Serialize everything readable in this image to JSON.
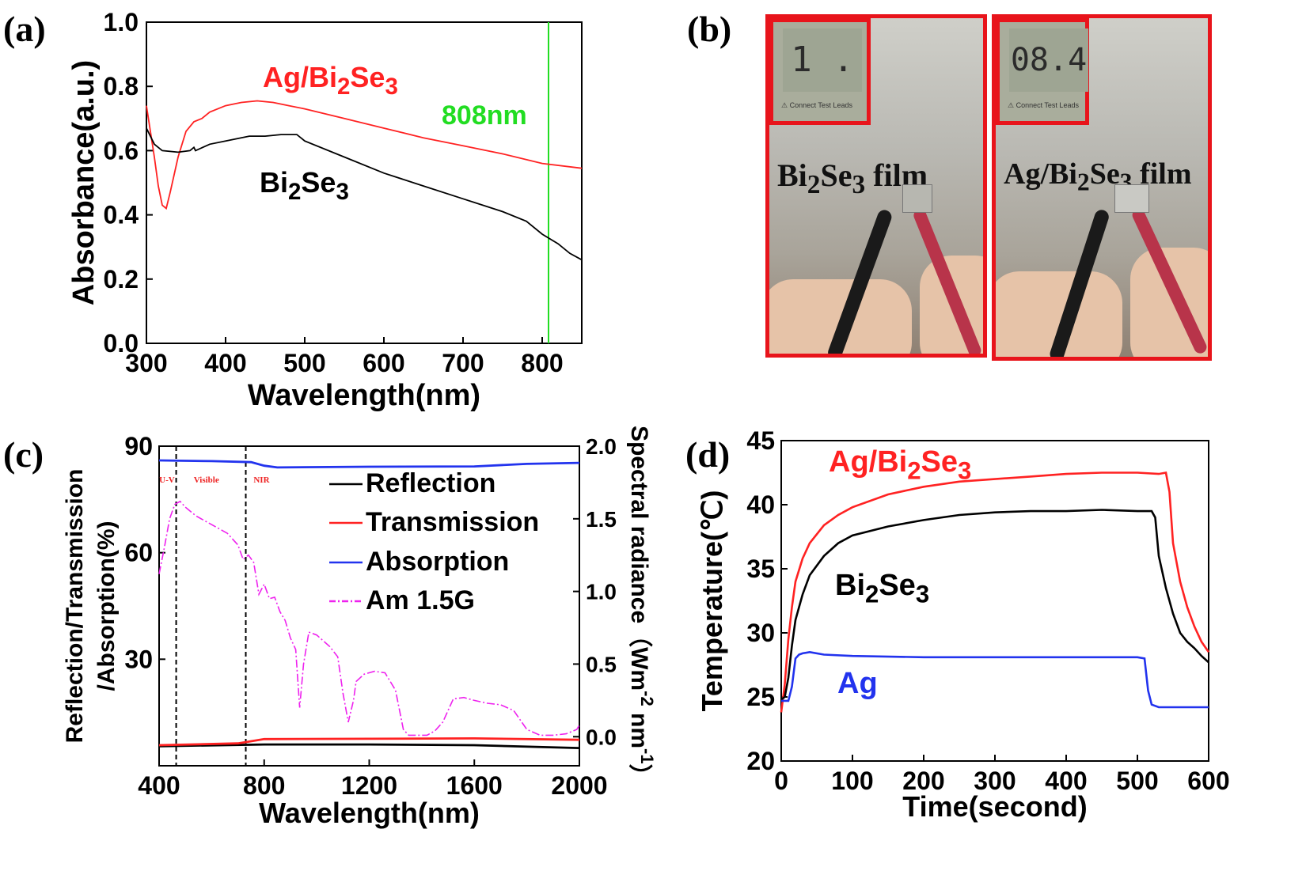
{
  "panel_labels": {
    "a": "(a)",
    "b": "(b)",
    "c": "(c)",
    "d": "(d)"
  },
  "photos": {
    "left": {
      "display": "1 .",
      "caption_main": "Bi",
      "caption_sub1": "2",
      "caption_mid": "Se",
      "caption_sub2": "3",
      "caption_end": " film",
      "leads_text": "⚠ Connect Test Leads"
    },
    "right": {
      "display": "08.4",
      "caption_main": "Ag/Bi",
      "caption_sub1": "2",
      "caption_mid": "Se",
      "caption_sub2": "3",
      "caption_end": " film",
      "leads_text": "⚠ Connect Test Leads"
    }
  },
  "chart_data": [
    {
      "id": "a",
      "type": "line",
      "xlabel": "Wavelength(nm)",
      "ylabel": "Absorbance(a.u.)",
      "xlim": [
        300,
        850
      ],
      "ylim": [
        0.0,
        1.0
      ],
      "xticks": [
        300,
        400,
        500,
        600,
        700,
        800
      ],
      "yticks": [
        0.0,
        0.2,
        0.4,
        0.6,
        0.8,
        1.0
      ],
      "ytick_labels": [
        "0.0",
        "0.2",
        "0.4",
        "0.6",
        "0.8",
        "1.0"
      ],
      "vline": {
        "x": 808,
        "label": "808nm",
        "color": "#22dd22"
      },
      "series": [
        {
          "name": "Ag/Bi2Se3",
          "color": "#ff2222",
          "label": {
            "main": "Ag/Bi",
            "sub1": "2",
            "mid": "Se",
            "sub2": "3"
          },
          "x": [
            300,
            305,
            310,
            315,
            320,
            325,
            330,
            340,
            350,
            360,
            370,
            380,
            400,
            420,
            440,
            460,
            480,
            500,
            550,
            600,
            650,
            700,
            750,
            800,
            850
          ],
          "y": [
            0.74,
            0.66,
            0.58,
            0.49,
            0.43,
            0.42,
            0.47,
            0.58,
            0.66,
            0.69,
            0.7,
            0.72,
            0.74,
            0.75,
            0.755,
            0.75,
            0.74,
            0.73,
            0.7,
            0.67,
            0.64,
            0.615,
            0.59,
            0.56,
            0.545
          ]
        },
        {
          "name": "Bi2Se3",
          "color": "#000000",
          "label": {
            "main": "Bi",
            "sub1": "2",
            "mid": "Se",
            "sub2": "3"
          },
          "x": [
            300,
            310,
            320,
            340,
            355,
            360,
            362,
            380,
            400,
            430,
            450,
            470,
            490,
            500,
            550,
            600,
            650,
            700,
            750,
            780,
            800,
            820,
            835,
            850
          ],
          "y": [
            0.67,
            0.62,
            0.6,
            0.595,
            0.6,
            0.61,
            0.6,
            0.62,
            0.63,
            0.645,
            0.645,
            0.65,
            0.65,
            0.63,
            0.58,
            0.53,
            0.49,
            0.45,
            0.41,
            0.38,
            0.34,
            0.31,
            0.28,
            0.26
          ]
        }
      ]
    },
    {
      "id": "c",
      "type": "line",
      "xlabel": "Wavelength(nm)",
      "ylabel_line1": "Reflection/Transmission",
      "ylabel_line2": "/Absorption(%)",
      "y2label": "Spectral radiance（Wm",
      "y2label_exp1": "-2",
      "y2label_mid": " nm",
      "y2label_exp2": "-1",
      "y2label_end": "）",
      "xlim": [
        400,
        2000
      ],
      "ylim": [
        0,
        90
      ],
      "y2lim": [
        -0.2,
        2.0
      ],
      "xticks": [
        400,
        800,
        1200,
        1600,
        2000
      ],
      "yticks": [
        30,
        60,
        90
      ],
      "y2ticks": [
        0.0,
        0.5,
        1.0,
        1.5,
        2.0
      ],
      "y2tick_labels": [
        "0.0",
        "0.5",
        "1.0",
        "1.5",
        "2.0"
      ],
      "region_labels": [
        {
          "text": "U-V",
          "x": 430
        },
        {
          "text": "Visible",
          "x": 580
        },
        {
          "text": "NIR",
          "x": 790
        }
      ],
      "region_lines": [
        465,
        730
      ],
      "legend": [
        "Reflection",
        "Transmission",
        "Absorption",
        "Am 1.5G"
      ],
      "series": [
        {
          "name": "Reflection",
          "color": "#000000",
          "x": [
            400,
            800,
            1200,
            1600,
            2000
          ],
          "y": [
            5.5,
            6.0,
            6.0,
            5.8,
            5.0
          ]
        },
        {
          "name": "Transmission",
          "color": "#ff2222",
          "x": [
            400,
            700,
            800,
            1200,
            1600,
            2000
          ],
          "y": [
            5.8,
            6.3,
            7.5,
            7.6,
            7.7,
            7.3
          ]
        },
        {
          "name": "Absorption",
          "color": "#2233ee",
          "x": [
            400,
            600,
            750,
            800,
            850,
            1200,
            1600,
            1800,
            2000
          ],
          "y": [
            86.0,
            85.8,
            85.5,
            84.5,
            84.0,
            84.2,
            84.3,
            85.0,
            85.3
          ]
        },
        {
          "name": "Am 1.5G",
          "color": "#ee22ee",
          "axis": "right",
          "x": [
            400,
            420,
            440,
            460,
            480,
            500,
            540,
            580,
            620,
            660,
            700,
            720,
            740,
            760,
            780,
            800,
            820,
            840,
            860,
            880,
            900,
            920,
            935,
            950,
            970,
            1000,
            1050,
            1080,
            1100,
            1120,
            1140,
            1150,
            1180,
            1220,
            1260,
            1300,
            1330,
            1350,
            1380,
            1420,
            1450,
            1480,
            1520,
            1560,
            1600,
            1650,
            1700,
            1750,
            1800,
            1850,
            1900,
            1950,
            1990,
            2000
          ],
          "y": [
            1.12,
            1.3,
            1.5,
            1.6,
            1.62,
            1.58,
            1.52,
            1.48,
            1.44,
            1.4,
            1.32,
            1.22,
            1.25,
            1.2,
            0.98,
            1.05,
            0.95,
            0.96,
            0.86,
            0.8,
            0.68,
            0.6,
            0.2,
            0.5,
            0.72,
            0.7,
            0.62,
            0.55,
            0.3,
            0.1,
            0.25,
            0.38,
            0.43,
            0.45,
            0.44,
            0.32,
            0.05,
            0.01,
            0.01,
            0.01,
            0.04,
            0.1,
            0.26,
            0.27,
            0.25,
            0.23,
            0.22,
            0.18,
            0.05,
            0.01,
            0.01,
            0.02,
            0.05,
            0.08
          ]
        }
      ]
    },
    {
      "id": "d",
      "type": "line",
      "xlabel": "Time(second)",
      "ylabel": "Temperature(℃)",
      "xlim": [
        0,
        600
      ],
      "ylim": [
        20,
        45
      ],
      "xticks": [
        0,
        100,
        200,
        300,
        400,
        500,
        600
      ],
      "yticks": [
        20,
        25,
        30,
        35,
        40,
        45
      ],
      "series": [
        {
          "name": "Ag/Bi2Se3",
          "color": "#ff2222",
          "label": {
            "main": "Ag/Bi",
            "sub1": "2",
            "mid": "Se",
            "sub2": "3"
          },
          "x": [
            0,
            5,
            10,
            15,
            20,
            30,
            40,
            60,
            80,
            100,
            150,
            200,
            250,
            300,
            350,
            400,
            450,
            500,
            530,
            540,
            545,
            550,
            560,
            570,
            580,
            590,
            600
          ],
          "y": [
            23.8,
            26.0,
            29.5,
            32.0,
            34.0,
            35.8,
            37.0,
            38.4,
            39.2,
            39.8,
            40.8,
            41.4,
            41.8,
            42.0,
            42.2,
            42.4,
            42.5,
            42.5,
            42.4,
            42.5,
            41.0,
            37.0,
            34.0,
            32.0,
            30.5,
            29.3,
            28.5
          ]
        },
        {
          "name": "Bi2Se3",
          "color": "#000000",
          "label": {
            "main": "Bi",
            "sub1": "2",
            "mid": "Se",
            "sub2": "3"
          },
          "x": [
            0,
            5,
            10,
            15,
            20,
            30,
            40,
            60,
            80,
            100,
            150,
            200,
            250,
            300,
            350,
            400,
            450,
            500,
            520,
            525,
            530,
            540,
            550,
            560,
            570,
            580,
            590,
            600
          ],
          "y": [
            24.8,
            25.0,
            26.5,
            29.0,
            31.0,
            33.0,
            34.5,
            36.0,
            37.0,
            37.6,
            38.3,
            38.8,
            39.2,
            39.4,
            39.5,
            39.5,
            39.6,
            39.5,
            39.5,
            39.0,
            36.0,
            33.5,
            31.5,
            30.0,
            29.3,
            28.8,
            28.2,
            27.7
          ]
        },
        {
          "name": "Ag",
          "color": "#2233ee",
          "label": {
            "main": "Ag"
          },
          "x": [
            0,
            10,
            15,
            20,
            25,
            30,
            40,
            60,
            100,
            200,
            300,
            400,
            450,
            500,
            510,
            515,
            520,
            530,
            550,
            570,
            600
          ],
          "y": [
            24.7,
            24.7,
            25.8,
            28.0,
            28.3,
            28.4,
            28.5,
            28.3,
            28.2,
            28.1,
            28.1,
            28.1,
            28.1,
            28.1,
            28.0,
            25.5,
            24.4,
            24.2,
            24.2,
            24.2,
            24.2
          ]
        }
      ]
    }
  ]
}
